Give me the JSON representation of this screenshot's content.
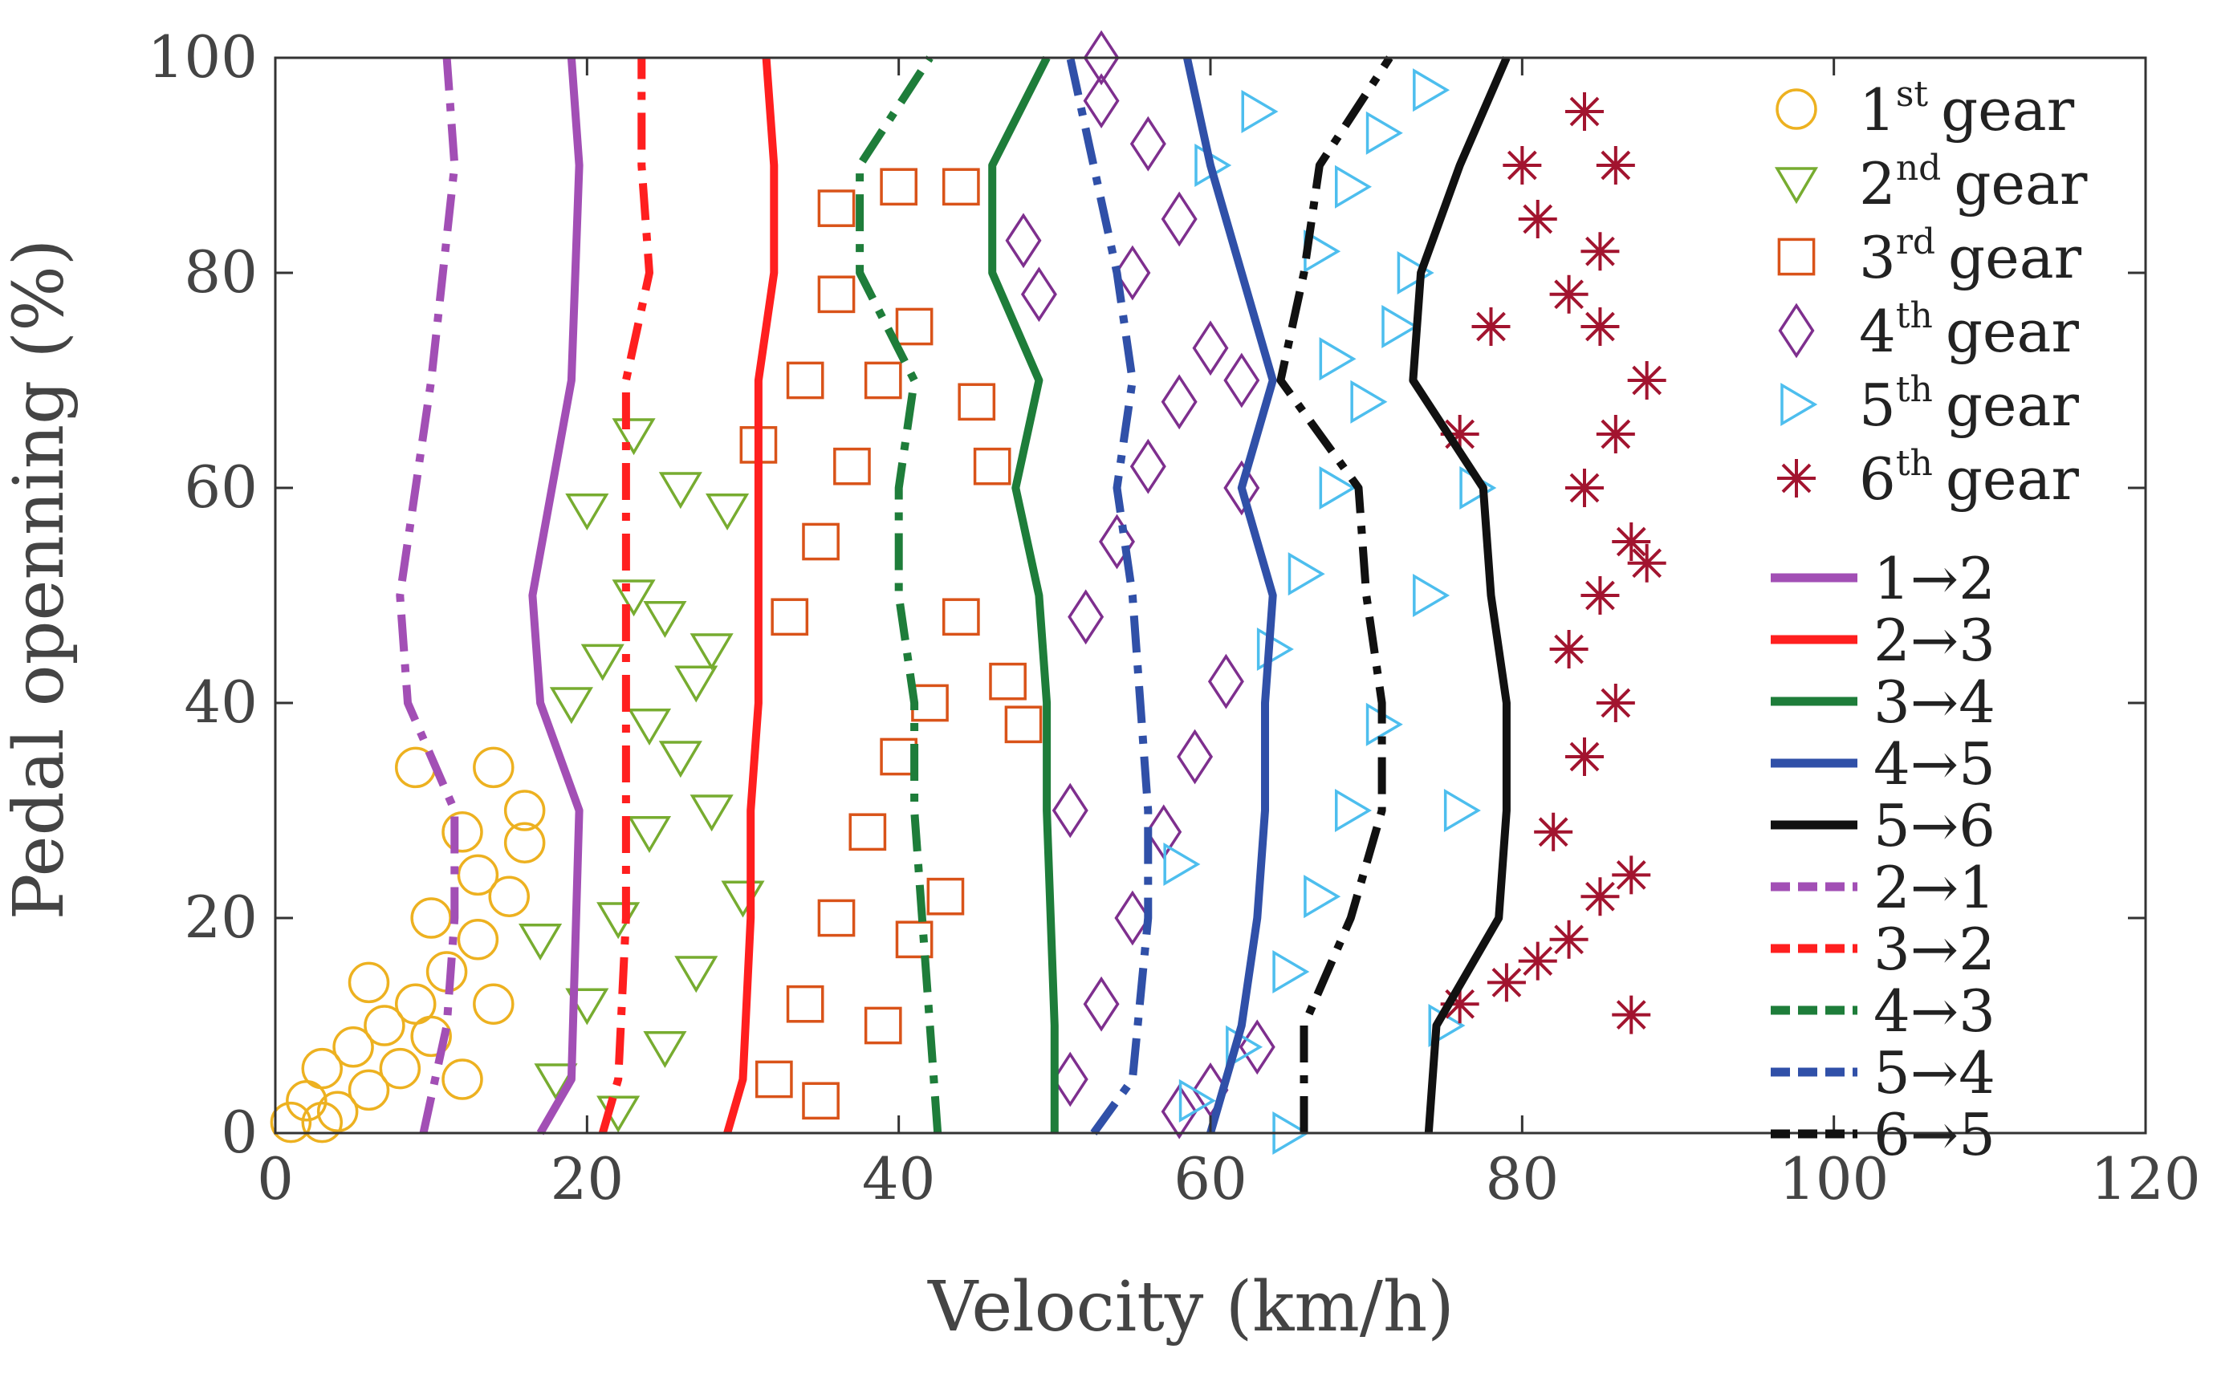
{
  "chart_data": {
    "type": "scatter",
    "title": "",
    "xlabel": "Velocity (km/h)",
    "ylabel": "Pedal openning (%)",
    "xlim": [
      0,
      120
    ],
    "ylim": [
      0,
      100
    ],
    "xticks": [
      "0",
      "20",
      "40",
      "60",
      "80",
      "100",
      "120"
    ],
    "yticks": [
      "0",
      "20",
      "40",
      "60",
      "80",
      "100"
    ],
    "legend_position": "right",
    "scatter_series": [
      {
        "name": "1st gear",
        "num": "1",
        "sup": "st",
        "word": "gear",
        "marker": "circle",
        "color": "#EDB120",
        "points": [
          [
            1,
            1
          ],
          [
            2,
            3
          ],
          [
            3,
            6
          ],
          [
            4,
            2
          ],
          [
            5,
            8
          ],
          [
            6,
            4
          ],
          [
            7,
            10
          ],
          [
            8,
            6
          ],
          [
            9,
            12
          ],
          [
            10,
            9
          ],
          [
            11,
            15
          ],
          [
            12,
            5
          ],
          [
            13,
            18
          ],
          [
            14,
            12
          ],
          [
            15,
            22
          ],
          [
            16,
            27
          ],
          [
            9,
            34
          ],
          [
            14,
            34
          ],
          [
            12,
            28
          ],
          [
            16,
            30
          ],
          [
            3,
            1
          ],
          [
            6,
            14
          ],
          [
            10,
            20
          ],
          [
            13,
            24
          ]
        ]
      },
      {
        "name": "2nd gear",
        "num": "2",
        "sup": "nd",
        "word": "gear",
        "marker": "triangle-down",
        "color": "#77AC30",
        "points": [
          [
            18,
            5
          ],
          [
            20,
            12
          ],
          [
            22,
            20
          ],
          [
            24,
            28
          ],
          [
            26,
            35
          ],
          [
            19,
            40
          ],
          [
            21,
            44
          ],
          [
            23,
            50
          ],
          [
            25,
            48
          ],
          [
            27,
            42
          ],
          [
            20,
            58
          ],
          [
            23,
            65
          ],
          [
            26,
            60
          ],
          [
            29,
            58
          ],
          [
            28,
            30
          ],
          [
            22,
            2
          ],
          [
            25,
            8
          ],
          [
            27,
            15
          ],
          [
            30,
            22
          ],
          [
            17,
            18
          ],
          [
            24,
            38
          ],
          [
            28,
            45
          ]
        ]
      },
      {
        "name": "3rd gear",
        "num": "3",
        "sup": "rd",
        "word": "gear",
        "marker": "square",
        "color": "#D95319",
        "points": [
          [
            32,
            5
          ],
          [
            34,
            12
          ],
          [
            36,
            20
          ],
          [
            38,
            28
          ],
          [
            40,
            35
          ],
          [
            42,
            40
          ],
          [
            33,
            48
          ],
          [
            35,
            55
          ],
          [
            37,
            62
          ],
          [
            39,
            70
          ],
          [
            41,
            75
          ],
          [
            36,
            78
          ],
          [
            36,
            86
          ],
          [
            40,
            88
          ],
          [
            44,
            88
          ],
          [
            45,
            68
          ],
          [
            46,
            62
          ],
          [
            44,
            48
          ],
          [
            47,
            42
          ],
          [
            48,
            38
          ],
          [
            43,
            22
          ],
          [
            35,
            3
          ],
          [
            39,
            10
          ],
          [
            41,
            18
          ],
          [
            31,
            64
          ],
          [
            34,
            70
          ]
        ]
      },
      {
        "name": "4th gear",
        "num": "4",
        "sup": "th",
        "word": "gear",
        "marker": "diamond",
        "color": "#7E2F8E",
        "points": [
          [
            51,
            5
          ],
          [
            53,
            12
          ],
          [
            55,
            20
          ],
          [
            57,
            28
          ],
          [
            59,
            35
          ],
          [
            61,
            42
          ],
          [
            52,
            48
          ],
          [
            54,
            55
          ],
          [
            56,
            62
          ],
          [
            58,
            68
          ],
          [
            60,
            73
          ],
          [
            62,
            70
          ],
          [
            55,
            80
          ],
          [
            58,
            85
          ],
          [
            48,
            83
          ],
          [
            49,
            78
          ],
          [
            53,
            100
          ],
          [
            53,
            96
          ],
          [
            56,
            92
          ],
          [
            62,
            60
          ],
          [
            60,
            4
          ],
          [
            63,
            8
          ],
          [
            58,
            2
          ],
          [
            51,
            30
          ]
        ]
      },
      {
        "name": "5th gear",
        "num": "5",
        "sup": "th",
        "word": "gear",
        "marker": "triangle-right",
        "color": "#4DBEEE",
        "points": [
          [
            59,
            3
          ],
          [
            62,
            8
          ],
          [
            65,
            15
          ],
          [
            67,
            22
          ],
          [
            69,
            30
          ],
          [
            71,
            38
          ],
          [
            64,
            45
          ],
          [
            66,
            52
          ],
          [
            68,
            60
          ],
          [
            70,
            68
          ],
          [
            72,
            75
          ],
          [
            67,
            82
          ],
          [
            69,
            88
          ],
          [
            71,
            93
          ],
          [
            74,
            97
          ],
          [
            63,
            95
          ],
          [
            60,
            90
          ],
          [
            58,
            25
          ],
          [
            76,
            30
          ],
          [
            74,
            50
          ],
          [
            73,
            80
          ],
          [
            77,
            60
          ],
          [
            65,
            0
          ],
          [
            68,
            72
          ],
          [
            75,
            10
          ]
        ]
      },
      {
        "name": "6th gear",
        "num": "6",
        "sup": "th",
        "word": "gear",
        "marker": "asterisk",
        "color": "#A2142F",
        "points": [
          [
            76,
            12
          ],
          [
            79,
            14
          ],
          [
            81,
            16
          ],
          [
            83,
            18
          ],
          [
            85,
            22
          ],
          [
            87,
            24
          ],
          [
            82,
            28
          ],
          [
            84,
            35
          ],
          [
            86,
            40
          ],
          [
            83,
            45
          ],
          [
            85,
            50
          ],
          [
            87,
            55
          ],
          [
            84,
            60
          ],
          [
            86,
            65
          ],
          [
            88,
            70
          ],
          [
            85,
            75
          ],
          [
            83,
            78
          ],
          [
            81,
            85
          ],
          [
            80,
            90
          ],
          [
            84,
            95
          ],
          [
            86,
            90
          ],
          [
            88,
            53
          ],
          [
            87,
            11
          ],
          [
            76,
            65
          ],
          [
            78,
            75
          ],
          [
            85,
            82
          ]
        ]
      }
    ],
    "line_series": [
      {
        "name": "1→2",
        "from": "1",
        "to": "2",
        "style": "solid",
        "color": "#A24FB5",
        "points": [
          [
            17,
            0
          ],
          [
            19,
            5
          ],
          [
            19.5,
            30
          ],
          [
            17,
            40
          ],
          [
            16.5,
            50
          ],
          [
            19,
            70
          ],
          [
            19.5,
            90
          ],
          [
            19,
            100
          ]
        ]
      },
      {
        "name": "2→3",
        "from": "2",
        "to": "3",
        "style": "solid",
        "color": "#FF1F1F",
        "points": [
          [
            29,
            0
          ],
          [
            30,
            5
          ],
          [
            30.5,
            20
          ],
          [
            30.5,
            30
          ],
          [
            31,
            40
          ],
          [
            31,
            50
          ],
          [
            31,
            60
          ],
          [
            31,
            70
          ],
          [
            32,
            80
          ],
          [
            32,
            90
          ],
          [
            31.5,
            100
          ]
        ]
      },
      {
        "name": "3→4",
        "from": "3",
        "to": "4",
        "style": "solid",
        "color": "#1E7D3A",
        "points": [
          [
            50,
            0
          ],
          [
            50,
            10
          ],
          [
            49.5,
            30
          ],
          [
            49.5,
            40
          ],
          [
            49,
            50
          ],
          [
            47.5,
            60
          ],
          [
            49,
            70
          ],
          [
            46,
            80
          ],
          [
            46,
            90
          ],
          [
            49.5,
            100
          ]
        ]
      },
      {
        "name": "4→5",
        "from": "4",
        "to": "5",
        "style": "solid",
        "color": "#3050A8",
        "points": [
          [
            60,
            0
          ],
          [
            62,
            10
          ],
          [
            63,
            20
          ],
          [
            63.5,
            30
          ],
          [
            63.5,
            40
          ],
          [
            64,
            50
          ],
          [
            62,
            60
          ],
          [
            64,
            70
          ],
          [
            62,
            80
          ],
          [
            60,
            90
          ],
          [
            58.5,
            100
          ]
        ]
      },
      {
        "name": "5→6",
        "from": "5",
        "to": "6",
        "style": "solid",
        "color": "#111111",
        "points": [
          [
            74,
            0
          ],
          [
            74.5,
            10
          ],
          [
            78.5,
            20
          ],
          [
            79,
            30
          ],
          [
            79,
            40
          ],
          [
            78,
            50
          ],
          [
            77.5,
            60
          ],
          [
            73,
            70
          ],
          [
            73.5,
            80
          ],
          [
            76,
            90
          ],
          [
            79,
            100
          ]
        ]
      },
      {
        "name": "2→1",
        "from": "2",
        "to": "1",
        "style": "dashdot",
        "color": "#A24FB5",
        "points": [
          [
            9.5,
            0
          ],
          [
            11,
            10
          ],
          [
            11.5,
            20
          ],
          [
            11.5,
            30
          ],
          [
            8.5,
            40
          ],
          [
            8,
            50
          ],
          [
            10,
            70
          ],
          [
            11.5,
            90
          ],
          [
            11,
            100
          ]
        ]
      },
      {
        "name": "3→2",
        "from": "3",
        "to": "2",
        "style": "dashdot",
        "color": "#FF1F1F",
        "points": [
          [
            21,
            0
          ],
          [
            22,
            5
          ],
          [
            22.5,
            20
          ],
          [
            22.5,
            40
          ],
          [
            22.5,
            60
          ],
          [
            22.5,
            70
          ],
          [
            24,
            80
          ],
          [
            23.5,
            90
          ],
          [
            23.5,
            100
          ]
        ]
      },
      {
        "name": "4→3",
        "from": "4",
        "to": "3",
        "style": "dashdot",
        "color": "#1E7D3A",
        "points": [
          [
            42.5,
            0
          ],
          [
            42,
            10
          ],
          [
            41.5,
            20
          ],
          [
            41,
            30
          ],
          [
            41,
            40
          ],
          [
            40,
            50
          ],
          [
            40,
            60
          ],
          [
            41,
            70
          ],
          [
            37.5,
            80
          ],
          [
            37.5,
            90
          ],
          [
            42,
            100
          ]
        ]
      },
      {
        "name": "5→4",
        "from": "5",
        "to": "4",
        "style": "dashdot",
        "color": "#3050A8",
        "points": [
          [
            52.5,
            0
          ],
          [
            55,
            5
          ],
          [
            56,
            20
          ],
          [
            56,
            30
          ],
          [
            55.5,
            40
          ],
          [
            55,
            50
          ],
          [
            54,
            60
          ],
          [
            55,
            70
          ],
          [
            54,
            80
          ],
          [
            52.5,
            90
          ],
          [
            51,
            100
          ]
        ]
      },
      {
        "name": "6→5",
        "from": "6",
        "to": "5",
        "style": "dashdot",
        "color": "#111111",
        "points": [
          [
            66,
            0
          ],
          [
            66,
            10
          ],
          [
            69,
            20
          ],
          [
            71,
            30
          ],
          [
            71,
            40
          ],
          [
            70,
            50
          ],
          [
            69.5,
            60
          ],
          [
            64.5,
            70
          ],
          [
            66,
            80
          ],
          [
            67,
            90
          ],
          [
            71.5,
            100
          ]
        ]
      }
    ]
  }
}
